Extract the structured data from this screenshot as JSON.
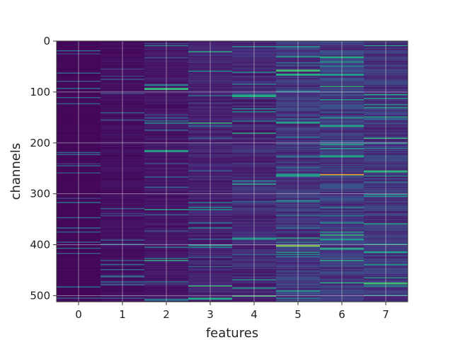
{
  "chart_data": {
    "type": "heatmap",
    "title": "",
    "xlabel": "features",
    "ylabel": "channels",
    "x_categories": [
      "0",
      "1",
      "2",
      "3",
      "4",
      "5",
      "6",
      "7"
    ],
    "y_ticks": [
      "0",
      "100",
      "200",
      "300",
      "400",
      "500"
    ],
    "y_range": [
      0,
      512
    ],
    "n_rows": 512,
    "n_cols": 8,
    "colormap": "viridis",
    "grid": true,
    "columns": [
      {
        "feature": "0",
        "typical_value": 0.02,
        "bright_rows": []
      },
      {
        "feature": "1",
        "typical_value": 0.04,
        "bright_rows": []
      },
      {
        "feature": "2",
        "typical_value": 0.06,
        "bright_rows": [
          93,
          160,
          215,
          330,
          430
        ]
      },
      {
        "feature": "3",
        "typical_value": 0.1,
        "bright_rows": [
          20,
          160,
          330,
          400,
          480,
          505
        ]
      },
      {
        "feature": "4",
        "typical_value": 0.12,
        "bright_rows": [
          60,
          107,
          180,
          280,
          387,
          500
        ]
      },
      {
        "feature": "5",
        "typical_value": 0.16,
        "bright_rows": [
          10,
          57,
          65,
          160,
          262,
          402,
          490
        ]
      },
      {
        "feature": "6",
        "typical_value": 0.18,
        "bright_rows": [
          30,
          88,
          150,
          210,
          224,
          262,
          380,
          474
        ]
      },
      {
        "feature": "7",
        "typical_value": 0.16,
        "bright_rows": [
          8,
          130,
          190,
          255,
          300,
          414,
          475
        ]
      }
    ],
    "peaks": [
      {
        "feature": "6",
        "channel": 262,
        "value": 1.0
      },
      {
        "feature": "5",
        "channel": 402,
        "value": 0.85
      }
    ]
  }
}
